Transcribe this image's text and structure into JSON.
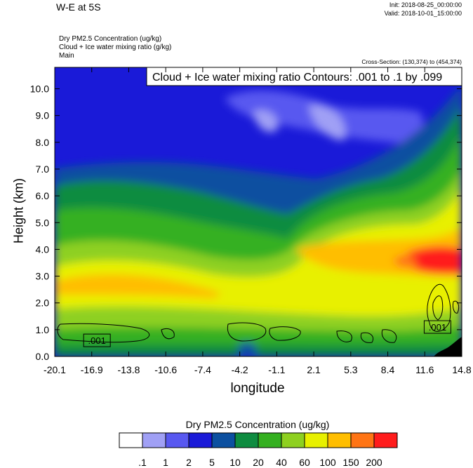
{
  "header": {
    "title": "W-E at 5S",
    "init": "Init: 2018-08-25_00:00:00",
    "valid": "Valid: 2018-10-01_15:00:00",
    "field_lines": [
      "Dry PM2.5 Concentration   (ug/kg)",
      "Cloud + Ice water mixing ratio   (g/kg)",
      "Main"
    ],
    "cross_section": "Cross-Section: (130,374) to (454,374)",
    "contour_note": "Cloud + Ice water mixing ratio Contours: .001 to .1 by .099"
  },
  "chart_data": {
    "type": "heatmap",
    "xlabel": "longitude",
    "ylabel": "Height (km)",
    "xlim": [
      -20.1,
      14.8
    ],
    "ylim": [
      0.0,
      10.8
    ],
    "x_ticks": [
      "-20.1",
      "-16.9",
      "-13.8",
      "-10.6",
      "-7.4",
      "-4.2",
      "-1.1",
      "2.1",
      "5.3",
      "8.4",
      "11.6",
      "14.8"
    ],
    "y_ticks": [
      "0.0",
      "1.0",
      "2.0",
      "3.0",
      "4.0",
      "5.0",
      "6.0",
      "7.0",
      "8.0",
      "9.0",
      "10.0"
    ],
    "y_tick_values": [
      0,
      1,
      2,
      3,
      4,
      5,
      6,
      7,
      8,
      9,
      10
    ],
    "contour_labels": [
      {
        "text": ".001",
        "x": -16.6,
        "y": 0.6
      },
      {
        "text": ".001",
        "x": 12.6,
        "y": 1.1
      }
    ],
    "colorbar": {
      "title": "Dry PM2.5 Concentration  (ug/kg)",
      "levels": [
        ".1",
        "1",
        "2",
        "5",
        "10",
        "20",
        "40",
        "60",
        "100",
        "150",
        "200"
      ],
      "colors": [
        "#ffffff",
        "#a0a0f5",
        "#5858f0",
        "#1a1ad8",
        "#0c50a0",
        "#0e8c40",
        "#34b020",
        "#8ed020",
        "#e8f000",
        "#ffbe00",
        "#ff7414",
        "#ff1c1c"
      ]
    }
  }
}
